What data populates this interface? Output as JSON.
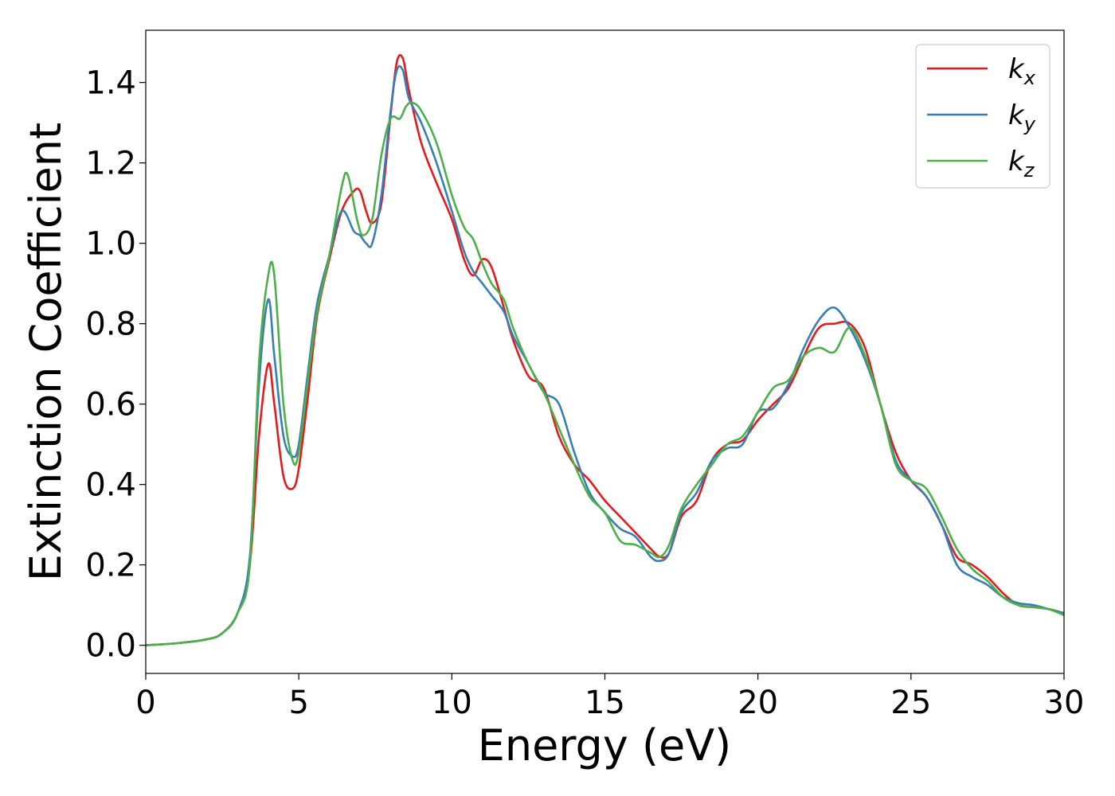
{
  "chart_data": {
    "type": "line",
    "xlabel": "Energy (eV)",
    "ylabel": "Extinction Coefficient",
    "xlim": [
      0,
      30
    ],
    "ylim": [
      -0.07,
      1.53
    ],
    "xticks": [
      0,
      5,
      10,
      15,
      20,
      25,
      30
    ],
    "xtick_labels": [
      "0",
      "5",
      "10",
      "15",
      "20",
      "25",
      "30"
    ],
    "yticks": [
      0.0,
      0.2,
      0.4,
      0.6,
      0.8,
      1.0,
      1.2,
      1.4
    ],
    "ytick_labels": [
      "0.0",
      "0.2",
      "0.4",
      "0.6",
      "0.8",
      "1.0",
      "1.2",
      "1.4"
    ],
    "grid": false,
    "legend_position": "top-right",
    "series": [
      {
        "name": "k_x",
        "label_base": "k",
        "label_sub": "x",
        "color": "#e41a1c",
        "x": [
          0,
          1,
          2,
          2.5,
          3,
          3.4,
          3.7,
          4.0,
          4.2,
          4.5,
          4.8,
          5.0,
          5.3,
          5.6,
          6.0,
          6.4,
          6.8,
          7.0,
          7.2,
          7.4,
          7.7,
          8.0,
          8.2,
          8.4,
          8.6,
          9.0,
          9.5,
          10.0,
          10.4,
          10.7,
          11.0,
          11.3,
          11.7,
          12.0,
          12.5,
          13.0,
          13.5,
          14.0,
          14.5,
          15.0,
          15.5,
          16.0,
          16.5,
          16.8,
          17.1,
          17.5,
          18.0,
          18.5,
          19.0,
          19.5,
          20.0,
          20.5,
          21.0,
          21.5,
          22.0,
          22.5,
          23.0,
          23.5,
          24.0,
          24.5,
          25.0,
          25.5,
          26.0,
          26.5,
          27.0,
          27.5,
          28.0,
          28.5,
          29.0,
          29.5,
          30
        ],
        "y": [
          0.0,
          0.005,
          0.015,
          0.03,
          0.08,
          0.2,
          0.52,
          0.7,
          0.6,
          0.42,
          0.39,
          0.44,
          0.62,
          0.82,
          0.96,
          1.08,
          1.13,
          1.13,
          1.08,
          1.05,
          1.1,
          1.32,
          1.45,
          1.46,
          1.38,
          1.25,
          1.15,
          1.06,
          0.96,
          0.92,
          0.96,
          0.94,
          0.84,
          0.76,
          0.67,
          0.64,
          0.52,
          0.45,
          0.41,
          0.36,
          0.32,
          0.28,
          0.24,
          0.22,
          0.23,
          0.32,
          0.36,
          0.46,
          0.5,
          0.51,
          0.56,
          0.6,
          0.64,
          0.72,
          0.79,
          0.8,
          0.8,
          0.74,
          0.6,
          0.48,
          0.41,
          0.37,
          0.3,
          0.22,
          0.2,
          0.17,
          0.13,
          0.1,
          0.095,
          0.09,
          0.08
        ]
      },
      {
        "name": "k_y",
        "label_base": "k",
        "label_sub": "y",
        "color": "#377eb8",
        "x": [
          0,
          1,
          2,
          2.5,
          3,
          3.4,
          3.7,
          4.0,
          4.2,
          4.5,
          4.8,
          5.0,
          5.3,
          5.6,
          6.0,
          6.4,
          6.8,
          7.0,
          7.2,
          7.4,
          7.7,
          8.0,
          8.2,
          8.4,
          8.6,
          9.0,
          9.5,
          10.0,
          10.4,
          10.7,
          11.0,
          11.3,
          11.7,
          12.0,
          12.5,
          13.0,
          13.5,
          14.0,
          14.5,
          15.0,
          15.5,
          16.0,
          16.5,
          16.8,
          17.1,
          17.5,
          18.0,
          18.5,
          19.0,
          19.5,
          20.0,
          20.5,
          21.0,
          21.5,
          22.0,
          22.5,
          23.0,
          23.5,
          24.0,
          24.5,
          25.0,
          25.5,
          26.0,
          26.5,
          27.0,
          27.5,
          28.0,
          28.5,
          29.0,
          29.5,
          30
        ],
        "y": [
          0.0,
          0.005,
          0.015,
          0.03,
          0.08,
          0.22,
          0.65,
          0.86,
          0.72,
          0.52,
          0.47,
          0.5,
          0.68,
          0.85,
          0.97,
          1.08,
          1.03,
          1.02,
          1.0,
          1.0,
          1.12,
          1.33,
          1.43,
          1.43,
          1.36,
          1.3,
          1.2,
          1.08,
          0.98,
          0.93,
          0.9,
          0.87,
          0.83,
          0.77,
          0.7,
          0.63,
          0.6,
          0.48,
          0.38,
          0.33,
          0.29,
          0.27,
          0.22,
          0.21,
          0.23,
          0.33,
          0.38,
          0.46,
          0.49,
          0.5,
          0.58,
          0.59,
          0.65,
          0.74,
          0.81,
          0.84,
          0.79,
          0.71,
          0.6,
          0.46,
          0.41,
          0.37,
          0.3,
          0.2,
          0.17,
          0.15,
          0.12,
          0.105,
          0.1,
          0.09,
          0.08
        ]
      },
      {
        "name": "k_z",
        "label_base": "k",
        "label_sub": "z",
        "color": "#4daf4a",
        "x": [
          0,
          1,
          2,
          2.5,
          3,
          3.4,
          3.7,
          4.0,
          4.2,
          4.5,
          4.8,
          5.0,
          5.3,
          5.6,
          6.0,
          6.4,
          6.6,
          6.9,
          7.1,
          7.4,
          7.7,
          8.0,
          8.3,
          8.5,
          8.7,
          9.0,
          9.5,
          10.0,
          10.4,
          10.7,
          11.0,
          11.3,
          11.7,
          12.0,
          12.5,
          13.0,
          13.5,
          14.0,
          14.5,
          15.0,
          15.5,
          16.0,
          16.5,
          16.8,
          17.1,
          17.5,
          18.0,
          18.5,
          19.0,
          19.5,
          20.0,
          20.5,
          21.0,
          21.5,
          22.0,
          22.5,
          23.0,
          23.5,
          24.0,
          24.5,
          25.0,
          25.5,
          26.0,
          26.5,
          27.0,
          27.5,
          28.0,
          28.5,
          29.0,
          29.5,
          30
        ],
        "y": [
          0.0,
          0.005,
          0.015,
          0.03,
          0.08,
          0.2,
          0.7,
          0.92,
          0.92,
          0.6,
          0.46,
          0.48,
          0.66,
          0.83,
          0.97,
          1.14,
          1.17,
          1.06,
          1.02,
          1.06,
          1.22,
          1.31,
          1.31,
          1.34,
          1.35,
          1.33,
          1.25,
          1.12,
          1.04,
          1.01,
          0.95,
          0.9,
          0.86,
          0.79,
          0.7,
          0.63,
          0.54,
          0.45,
          0.37,
          0.33,
          0.26,
          0.25,
          0.23,
          0.22,
          0.25,
          0.34,
          0.4,
          0.45,
          0.5,
          0.52,
          0.58,
          0.64,
          0.66,
          0.72,
          0.74,
          0.73,
          0.79,
          0.72,
          0.6,
          0.45,
          0.41,
          0.39,
          0.32,
          0.24,
          0.19,
          0.16,
          0.12,
          0.1,
          0.095,
          0.09,
          0.075
        ]
      }
    ]
  }
}
